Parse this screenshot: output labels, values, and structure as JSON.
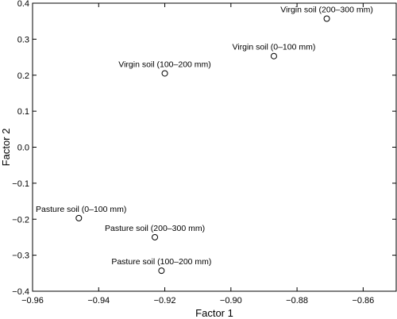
{
  "chart_data": {
    "type": "scatter",
    "title": "",
    "xlabel": "Factor 1",
    "ylabel": "Factor 2",
    "xlim": [
      -0.96,
      -0.85
    ],
    "ylim": [
      -0.4,
      0.4
    ],
    "xticks": [
      -0.96,
      -0.94,
      -0.92,
      -0.9,
      -0.88,
      -0.86
    ],
    "xtick_labels": [
      "−0.96",
      "−0.94",
      "−0.92",
      "−0.90",
      "−0.88",
      "−0.86"
    ],
    "yticks": [
      -0.4,
      -0.3,
      -0.2,
      -0.1,
      0,
      0.1,
      0.2,
      0.3,
      0.4
    ],
    "ytick_labels": [
      "−0.4",
      "−0.3",
      "−0.2",
      "−0.1",
      "0.0",
      "0.1",
      "0.2",
      "0.3",
      "0.4"
    ],
    "grid": false,
    "marker": "open-circle",
    "points": [
      {
        "label": "Virgin soil (200–300 mm)",
        "x": -0.871,
        "y": 0.357
      },
      {
        "label": "Virgin soil (0–100 mm)",
        "x": -0.887,
        "y": 0.253
      },
      {
        "label": "Virgin soil (100–200 mm)",
        "x": -0.92,
        "y": 0.205
      },
      {
        "label": "Pasture soil (0–100 mm)",
        "x": -0.946,
        "y": -0.197
      },
      {
        "label": "Pasture soil (200–300 mm)",
        "x": -0.923,
        "y": -0.25
      },
      {
        "label": "Pasture soil (100–200 mm)",
        "x": -0.921,
        "y": -0.343
      }
    ]
  }
}
